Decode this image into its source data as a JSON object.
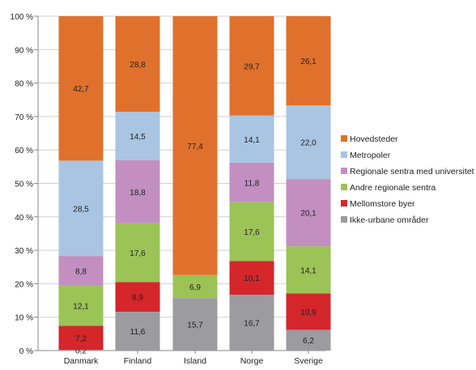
{
  "chart_data": {
    "type": "bar",
    "stacked": true,
    "percent": true,
    "categories": [
      "Danmark",
      "Finland",
      "Island",
      "Norge",
      "Sverige"
    ],
    "ylim": [
      0,
      100
    ],
    "yticks": [
      "0 %",
      "10 %",
      "20 %",
      "30 %",
      "40 %",
      "50 %",
      "60 %",
      "70 %",
      "80 %",
      "90 %",
      "100 %"
    ],
    "grid": true,
    "legend_position": "right",
    "series": [
      {
        "name": "Ikke-urbane områder",
        "color": "#9b9ba0",
        "values": [
          0.2,
          11.6,
          15.7,
          16.7,
          6.2
        ],
        "labels": [
          "0,2",
          "11,6",
          "15,7",
          "16,7",
          "6,2"
        ]
      },
      {
        "name": "Mellomstore byer",
        "color": "#d4262b",
        "values": [
          7.2,
          8.9,
          0,
          10.1,
          10.9
        ],
        "labels": [
          "7,2",
          "8,9",
          "",
          "10,1",
          "10,9"
        ]
      },
      {
        "name": "Andre regionale sentra",
        "color": "#9cc356",
        "values": [
          12.1,
          17.6,
          6.9,
          17.6,
          14.1
        ],
        "labels": [
          "12,1",
          "17,6",
          "6,9",
          "17,6",
          "14,1"
        ]
      },
      {
        "name": "Regionale sentra med universitet",
        "color": "#c28fc0",
        "values": [
          8.8,
          18.8,
          0,
          11.8,
          20.1
        ],
        "labels": [
          "8,8",
          "18,8",
          "",
          "11,8",
          "20,1"
        ]
      },
      {
        "name": "Metropoler",
        "color": "#a9c5e2",
        "values": [
          28.5,
          14.5,
          0,
          14.1,
          22.0
        ],
        "labels": [
          "28,5",
          "14,5",
          "",
          "14,1",
          "22,0"
        ]
      },
      {
        "name": "Hovedsteder",
        "color": "#e0712c",
        "values": [
          42.7,
          28.8,
          77.4,
          29.7,
          26.1
        ],
        "labels": [
          "42,7",
          "28,8",
          "77,4",
          "29,7",
          "26,1"
        ]
      }
    ],
    "legend_order": [
      "Hovedsteder",
      "Metropoler",
      "Regionale sentra med universitet",
      "Andre regionale sentra",
      "Mellomstore byer",
      "Ikke-urbane områder"
    ]
  }
}
